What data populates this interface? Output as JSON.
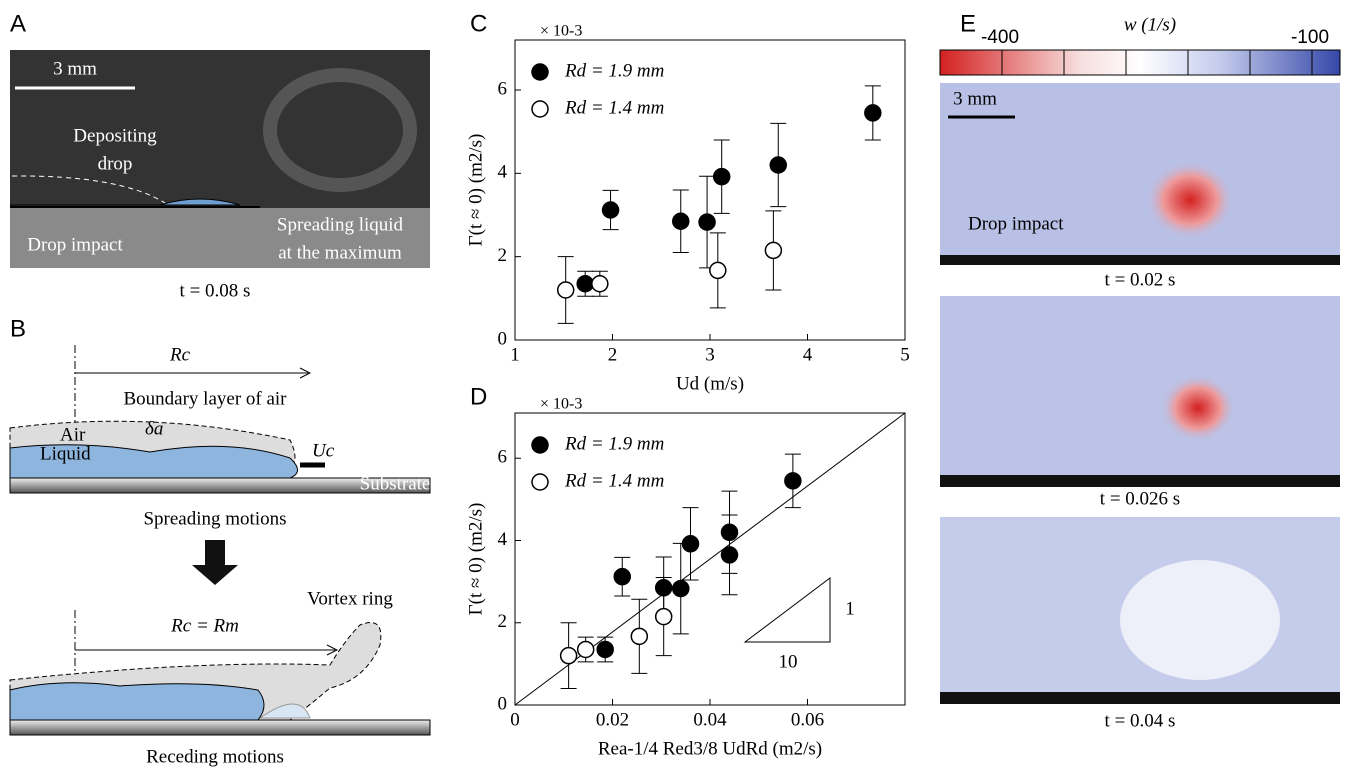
{
  "panel_a": {
    "label": "A",
    "scale": "3 mm",
    "annotation_top": "Depositing",
    "annotation_bottom": "drop",
    "impact": "Drop impact",
    "spreading_1": "Spreading liquid",
    "spreading_2": "at the maximum",
    "time": "t = 0.08 s"
  },
  "panel_b": {
    "label": "B",
    "rc": "Rc",
    "boundary": "Boundary layer of air",
    "air": "Air",
    "delta": "δa",
    "uc": "Uc",
    "liquid": "Liquid",
    "substrate": "Substrate",
    "spreading": "Spreading motions",
    "vortex": "Vortex ring",
    "rcrm": "Rc = Rm",
    "receding": "Receding motions"
  },
  "panel_e": {
    "label": "E",
    "colorbar_title": "w (1/s)",
    "colorbar_low": "-400",
    "colorbar_high": "-100",
    "scale": "3 mm",
    "impact": "Drop impact",
    "times": [
      "t = 0.02 s",
      "t = 0.026 s",
      "t = 0.04 s"
    ]
  },
  "chart_data": [
    {
      "type": "scatter",
      "panel": "C",
      "multiplier": "× 10-3",
      "x_label": "Ud (m/s)",
      "y_label": "Γ(t ≈ 0) (m2/s)",
      "xlim": [
        1,
        5
      ],
      "ylim": [
        0,
        7.2
      ],
      "xticks": [
        1,
        2,
        3,
        4,
        5
      ],
      "yticks": [
        0,
        2,
        4,
        6
      ],
      "series": [
        {
          "name": "Rd = 1.9 mm",
          "color": "#000000",
          "fill": "#000000",
          "x": [
            1.72,
            1.98,
            2.7,
            2.97,
            3.12,
            3.7,
            4.67
          ],
          "values": [
            1.35,
            3.12,
            2.85,
            2.83,
            3.92,
            4.2,
            5.45
          ],
          "errors": [
            0.3,
            0.47,
            0.75,
            1.1,
            0.88,
            1.0,
            0.65
          ]
        },
        {
          "name": "Rd = 1.4 mm",
          "color": "#000000",
          "fill": "#ffffff",
          "x": [
            1.52,
            1.87,
            3.08,
            3.65
          ],
          "values": [
            1.2,
            1.35,
            1.67,
            2.15
          ],
          "errors": [
            0.8,
            0.3,
            0.9,
            0.95
          ]
        }
      ]
    },
    {
      "type": "scatter",
      "panel": "D",
      "multiplier": "× 10-3",
      "x_label": "Rea-1/4 Red3/8 UdRd (m2/s)",
      "y_label": "Γ(t ≈ 0) (m2/s)",
      "xlim": [
        0,
        0.08
      ],
      "ylim": [
        0,
        7.1
      ],
      "xticks": [
        0,
        0.02,
        0.04,
        0.06
      ],
      "yticks": [
        0,
        2,
        4,
        6
      ],
      "slope_rise": "1",
      "slope_run": "10",
      "fit": {
        "x": [
          0,
          0.08
        ],
        "y": [
          0,
          7.1
        ]
      },
      "series": [
        {
          "name": "Rd = 1.9 mm",
          "color": "#000000",
          "fill": "#000000",
          "x": [
            0.0185,
            0.022,
            0.0305,
            0.034,
            0.036,
            0.044,
            0.044,
            0.057
          ],
          "values": [
            1.35,
            3.12,
            2.85,
            2.83,
            3.92,
            4.2,
            3.65,
            5.45
          ],
          "errors": [
            0.3,
            0.47,
            0.75,
            1.1,
            0.88,
            1.0,
            0.97,
            0.65
          ]
        },
        {
          "name": "Rd = 1.4 mm",
          "color": "#000000",
          "fill": "#ffffff",
          "x": [
            0.011,
            0.0145,
            0.0255,
            0.0305
          ],
          "values": [
            1.2,
            1.35,
            1.67,
            2.15
          ],
          "errors": [
            0.8,
            0.3,
            0.9,
            0.95
          ]
        }
      ]
    }
  ]
}
